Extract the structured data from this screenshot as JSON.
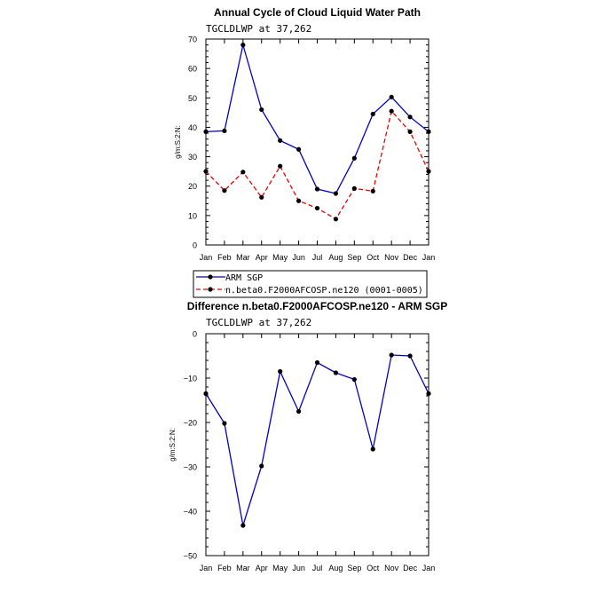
{
  "chart_data": [
    {
      "type": "line",
      "title": "Annual Cycle of Cloud Liquid Water Path",
      "subtitle": "TGCLDLWP at 37,262",
      "ylabel": "g/m:S:2:N:",
      "categories": [
        "Jan",
        "Feb",
        "Mar",
        "Apr",
        "May",
        "Jun",
        "Jul",
        "Aug",
        "Sep",
        "Oct",
        "Nov",
        "Dec",
        "Jan"
      ],
      "ylim": [
        0,
        70
      ],
      "yticks": [
        0,
        10,
        20,
        30,
        40,
        50,
        60,
        70
      ],
      "ytick_labels": [
        "0",
        "10",
        "20",
        "30",
        "40",
        "50",
        "60",
        "70"
      ],
      "grid": false,
      "legend_position": "bottom",
      "series": [
        {
          "name": "ARM SGP",
          "color": "#0000cc",
          "dash": "solid",
          "values": [
            38.5,
            38.8,
            68.0,
            46.0,
            35.5,
            32.5,
            19.0,
            17.5,
            29.5,
            44.5,
            50.3,
            43.5,
            38.5
          ]
        },
        {
          "name": "n.beta0.F2000AFCOSP.ne120 (0001-0005)",
          "color": "#ee0000",
          "dash": "dashed",
          "values": [
            25.0,
            18.5,
            24.8,
            16.2,
            26.8,
            15.0,
            12.5,
            8.8,
            19.2,
            18.3,
            45.5,
            38.5,
            25.0
          ]
        }
      ]
    },
    {
      "type": "line",
      "title": "Difference n.beta0.F2000AFCOSP.ne120 - ARM SGP",
      "subtitle": "TGCLDLWP at 37,262",
      "ylabel": "g/m:S:2:N:",
      "categories": [
        "Jan",
        "Feb",
        "Mar",
        "Apr",
        "May",
        "Jun",
        "Jul",
        "Aug",
        "Sep",
        "Oct",
        "Nov",
        "Dec",
        "Jan"
      ],
      "ylim": [
        -50,
        0
      ],
      "yticks": [
        -50,
        -40,
        -30,
        -20,
        -10,
        0
      ],
      "ytick_labels": [
        "−50",
        "−40",
        "−30",
        "−20",
        "−10",
        "0"
      ],
      "grid": false,
      "series": [
        {
          "color": "#0000cc",
          "dash": "solid",
          "values": [
            -13.5,
            -20.2,
            -43.2,
            -29.8,
            -8.5,
            -17.5,
            -6.5,
            -8.8,
            -10.3,
            -26.0,
            -4.8,
            -5.0,
            -13.5
          ]
        }
      ]
    }
  ]
}
